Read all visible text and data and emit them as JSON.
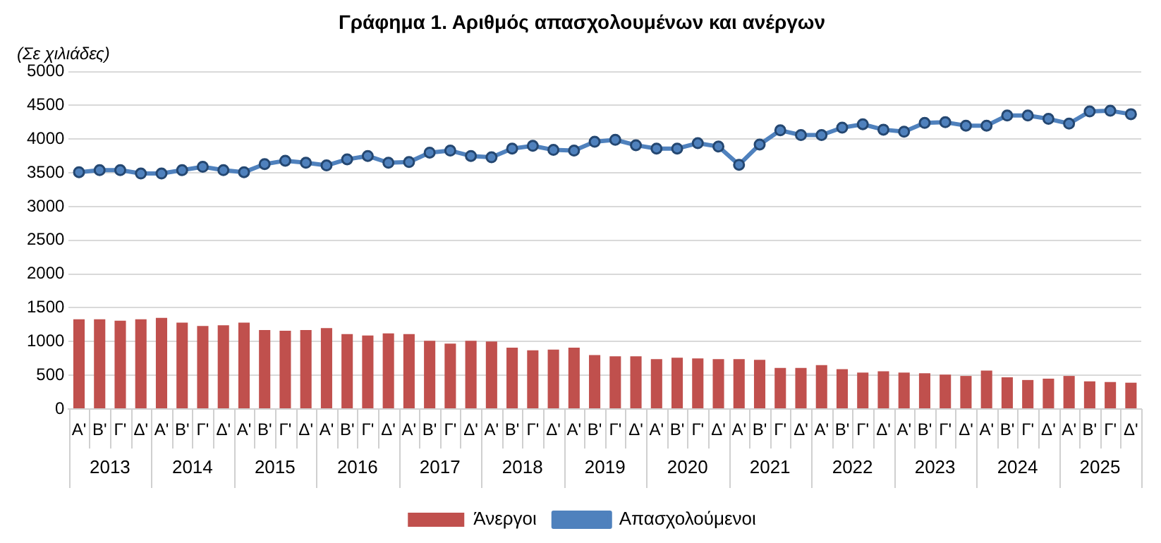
{
  "chart_data": {
    "type": "bar",
    "title": "Γράφημα 1. Αριθμός απασχολουμένων και ανέργων",
    "ylabel": "(Σε χιλιάδες)",
    "categories": [
      "Α'",
      "Β'",
      "Γ'",
      "Δ'",
      "Α'",
      "Β'",
      "Γ'",
      "Δ'",
      "Α'",
      "Β'",
      "Γ'",
      "Δ'",
      "Α'",
      "Β'",
      "Γ'",
      "Δ'",
      "Α'",
      "Β'",
      "Γ'",
      "Δ'",
      "Α'",
      "Β'",
      "Γ'",
      "Δ'",
      "Α'",
      "Β'",
      "Γ'",
      "Δ'",
      "Α'",
      "Β'",
      "Γ'",
      "Δ'",
      "Α'",
      "Β'",
      "Γ'",
      "Δ'",
      "Α'",
      "Β'",
      "Γ'",
      "Δ'",
      "Α'",
      "Β'",
      "Γ'",
      "Δ'",
      "Α'",
      "Β'",
      "Γ'",
      "Δ'",
      "Α'",
      "Β'",
      "Γ'",
      "Δ'"
    ],
    "annotations": [
      "2013",
      "2014",
      "2015",
      "2016",
      "2017",
      "2018",
      "2019",
      "2020",
      "2021",
      "2022",
      "2023",
      "2024",
      "2025"
    ],
    "series": [
      {
        "name": "Άνεργοι",
        "color": "#c0504d",
        "values": [
          1330,
          1330,
          1310,
          1330,
          1350,
          1280,
          1230,
          1240,
          1280,
          1170,
          1160,
          1170,
          1200,
          1110,
          1090,
          1120,
          1110,
          1010,
          970,
          1010,
          1000,
          910,
          870,
          880,
          910,
          800,
          780,
          780,
          740,
          760,
          750,
          740,
          740,
          730,
          610,
          610,
          650,
          590,
          540,
          560,
          540,
          530,
          510,
          490,
          570,
          470,
          430,
          450,
          490,
          410,
          400,
          390
        ]
      },
      {
        "name": "Απασχολούμενοι",
        "type": "line",
        "color": "#4f81bd",
        "values": [
          3510,
          3540,
          3540,
          3490,
          3490,
          3540,
          3590,
          3540,
          3510,
          3630,
          3680,
          3650,
          3610,
          3700,
          3750,
          3650,
          3660,
          3800,
          3830,
          3750,
          3730,
          3860,
          3900,
          3840,
          3830,
          3960,
          3990,
          3910,
          3860,
          3860,
          3940,
          3890,
          3620,
          3920,
          4130,
          4060,
          4060,
          4170,
          4220,
          4140,
          4110,
          4240,
          4250,
          4200,
          4200,
          4350,
          4350,
          4300,
          4230,
          4410,
          4420,
          4370
        ]
      }
    ],
    "ylim": [
      0,
      5000
    ],
    "yticks": [
      0,
      500,
      1000,
      1500,
      2000,
      2500,
      3000,
      3500,
      4000,
      4500,
      5000
    ],
    "grid": "y",
    "legend": "bottom",
    "marker": "circle",
    "line_style": "solid"
  }
}
